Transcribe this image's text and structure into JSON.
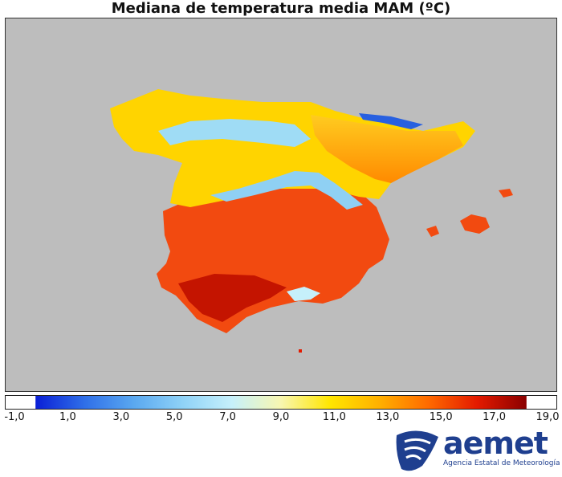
{
  "title": "Mediana de temperatura media MAM (ºC)",
  "colorbar": {
    "ticks": [
      "-1,0",
      "1,0",
      "3,0",
      "5,0",
      "7,0",
      "9,0",
      "11,0",
      "13,0",
      "15,0",
      "17,0",
      "19,0"
    ],
    "range": [
      -1,
      19
    ],
    "colors": [
      "#0a1fd6",
      "#2f6fe8",
      "#5aa8f0",
      "#8fd2f7",
      "#c6f0fb",
      "#f8f6b0",
      "#ffe600",
      "#ffb000",
      "#ff6a00",
      "#e31a00",
      "#8a0000"
    ]
  },
  "map": {
    "background_color": "#bdbdbd",
    "region": "Península Ibérica y Baleares"
  },
  "logo": {
    "name": "aemet",
    "subtitle": "Agencia Estatal de Meteorología",
    "color": "#1f3f8f"
  }
}
